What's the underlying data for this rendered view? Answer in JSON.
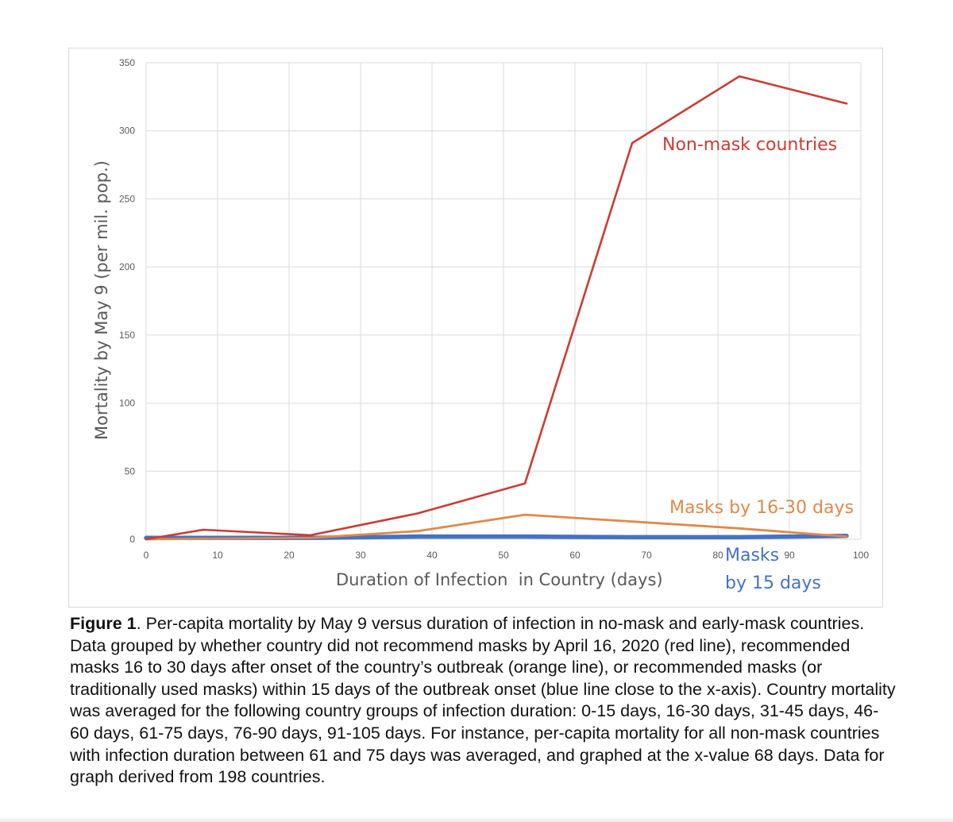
{
  "chart_data": {
    "type": "line",
    "title": "",
    "xlabel": "Duration of Infection  in Country (days)",
    "ylabel": "Mortality by May 9 (per mil. pop.)",
    "xlim": [
      0,
      100
    ],
    "ylim": [
      0,
      350
    ],
    "x_ticks": [
      "0",
      "10",
      "20",
      "30",
      "40",
      "50",
      "60",
      "70",
      "80",
      "90",
      "100"
    ],
    "y_ticks": [
      "0",
      "50",
      "100",
      "150",
      "200",
      "250",
      "300",
      "350"
    ],
    "grid": true,
    "series": [
      {
        "name": "Non-mask countries",
        "color": "#cd3b33",
        "points": [
          [
            0,
            0
          ],
          [
            8,
            7
          ],
          [
            23,
            3
          ],
          [
            38,
            19
          ],
          [
            53,
            41
          ],
          [
            68,
            291
          ],
          [
            83,
            340
          ],
          [
            98,
            320
          ]
        ]
      },
      {
        "name": "Masks by 16-30 days",
        "color": "#e0894a",
        "points": [
          [
            0,
            0
          ],
          [
            23,
            1
          ],
          [
            38,
            6
          ],
          [
            53,
            18
          ],
          [
            68,
            13
          ],
          [
            83,
            8
          ],
          [
            98,
            2
          ]
        ]
      },
      {
        "name": "Masks by 15 days",
        "color": "#4472c4",
        "points": [
          [
            0,
            1
          ],
          [
            23,
            1
          ],
          [
            38,
            2
          ],
          [
            53,
            2
          ],
          [
            68,
            1.5
          ],
          [
            83,
            1.5
          ],
          [
            98,
            2.5
          ]
        ]
      }
    ]
  },
  "labels": {
    "non_mask": "Non-mask countries",
    "masks_16_30": "Masks by 16-30 days",
    "masks_15_a": "Masks",
    "masks_15_b": "by 15 days"
  },
  "caption": {
    "figure_label": "Figure 1",
    "text": ". Per-capita mortality by May 9 versus duration of infection in no-mask and early-mask countries.  Data grouped by whether country did not recommend masks by April 16, 2020 (red line), recommended masks 16 to 30 days after onset of the country’s outbreak (orange line), or recommended masks (or traditionally used masks) within 15 days of the outbreak onset (blue line close to the x-axis).  Country mortality was averaged for the following country groups of infection duration: 0-15 days, 16-30 days, 31-45 days, 46-60 days, 61-75 days, 76-90 days, 91-105 days.  For instance, per-capita mortality for all non-mask countries with infection duration between 61 and 75 days was averaged, and graphed at the x-value 68 days.  Data for graph derived from 198 countries."
  }
}
